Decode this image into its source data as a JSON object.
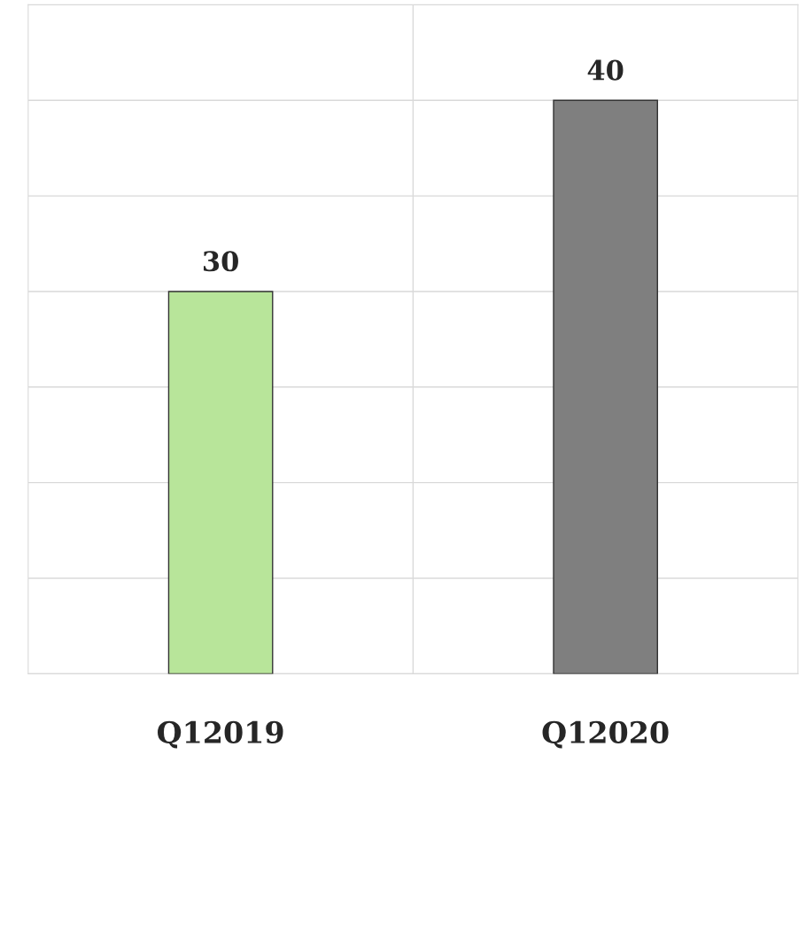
{
  "chart_data": {
    "type": "bar",
    "categories": [
      "Q12019",
      "Q12020"
    ],
    "values": [
      30,
      40
    ],
    "colors": [
      "#b8e59a",
      "#7f7f7f"
    ],
    "ylim": [
      10,
      45
    ],
    "yticks": [
      {
        "value": 10,
        "label": null
      },
      {
        "value": 15,
        "label": null
      },
      {
        "value": 20,
        "label": null
      },
      {
        "value": 25,
        "label": null
      },
      {
        "value": 30,
        "label": null
      },
      {
        "value": 35,
        "label": null
      },
      {
        "value": 40,
        "label": null
      },
      {
        "value": 45,
        "label": null
      }
    ],
    "tick_labels": "x",
    "data_labels": true,
    "grid": true
  }
}
